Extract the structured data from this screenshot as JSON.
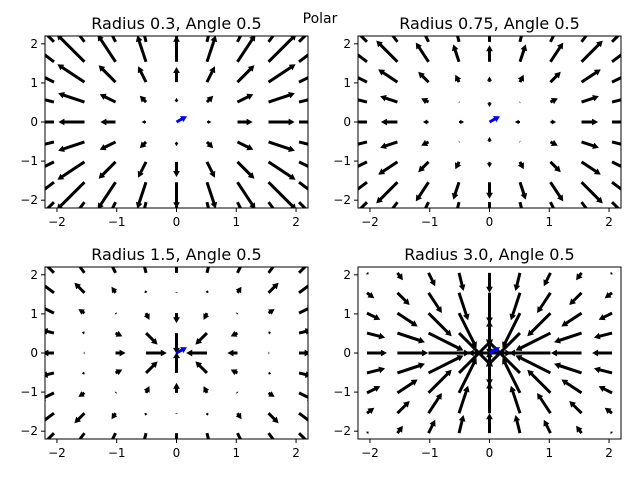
{
  "figure": {
    "suptitle": "Polar"
  },
  "chart_data": [
    {
      "type": "quiver",
      "title": "Radius 0.3, Angle 0.5",
      "radius": 0.3,
      "angle": 0.5,
      "xlim": [
        -2.2,
        2.2
      ],
      "ylim": [
        -2.2,
        2.2
      ],
      "xticks": [
        -2,
        -1,
        0,
        1,
        2
      ],
      "yticks": [
        -2,
        -1,
        0,
        1,
        2
      ],
      "grid": false,
      "highlight_color": "#0000ff",
      "arrow_color": "#000000"
    },
    {
      "type": "quiver",
      "title": "Radius 0.75, Angle 0.5",
      "radius": 0.75,
      "angle": 0.5,
      "xlim": [
        -2.2,
        2.2
      ],
      "ylim": [
        -2.2,
        2.2
      ],
      "xticks": [
        -2,
        -1,
        0,
        1,
        2
      ],
      "yticks": [
        -2,
        -1,
        0,
        1,
        2
      ],
      "grid": false,
      "highlight_color": "#0000ff",
      "arrow_color": "#000000"
    },
    {
      "type": "quiver",
      "title": "Radius 1.5, Angle 0.5",
      "radius": 1.5,
      "angle": 0.5,
      "xlim": [
        -2.2,
        2.2
      ],
      "ylim": [
        -2.2,
        2.2
      ],
      "xticks": [
        -2,
        -1,
        0,
        1,
        2
      ],
      "yticks": [
        -2,
        -1,
        0,
        1,
        2
      ],
      "grid": false,
      "highlight_color": "#0000ff",
      "arrow_color": "#000000"
    },
    {
      "type": "quiver",
      "title": "Radius 3.0, Angle 0.5",
      "radius": 3.0,
      "angle": 0.5,
      "xlim": [
        -2.2,
        2.2
      ],
      "ylim": [
        -2.2,
        2.2
      ],
      "xticks": [
        -2,
        -1,
        0,
        1,
        2
      ],
      "yticks": [
        -2,
        -1,
        0,
        1,
        2
      ],
      "grid": false,
      "highlight_color": "#0000ff",
      "arrow_color": "#000000"
    }
  ]
}
